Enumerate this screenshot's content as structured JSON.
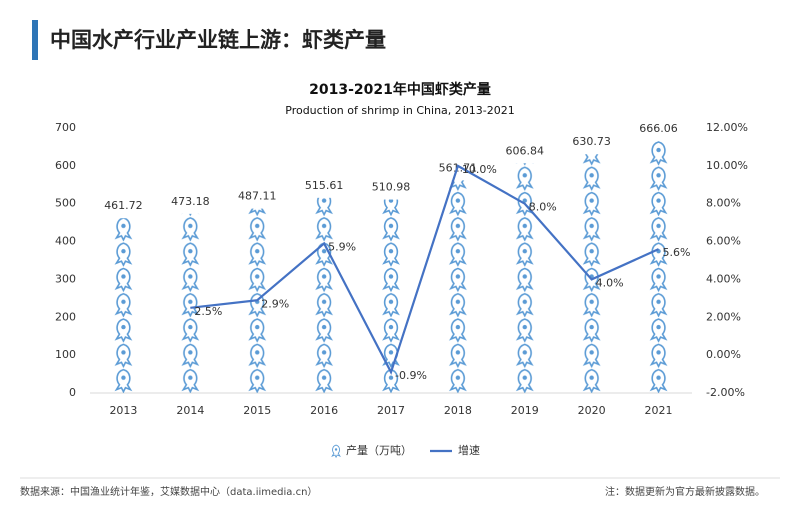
{
  "header": {
    "title": "中国水产行业产业链上游：虾类产量"
  },
  "chart_data": {
    "type": "bar",
    "title": "2013-2021年中国虾类产量",
    "subtitle": "Production of shrimp in China, 2013-2021",
    "categories": [
      "2013",
      "2014",
      "2015",
      "2016",
      "2017",
      "2018",
      "2019",
      "2020",
      "2021"
    ],
    "series": [
      {
        "name": "产量（万吨）",
        "type": "bar",
        "color": "#5b9bd5",
        "values": [
          461.72,
          473.18,
          487.11,
          515.61,
          510.98,
          561.71,
          606.84,
          630.73,
          666.06
        ]
      },
      {
        "name": "增速",
        "type": "line",
        "axis": "y2",
        "color": "#4472c4",
        "values": [
          null,
          2.5,
          2.9,
          5.9,
          -0.9,
          10.0,
          8.0,
          4.0,
          5.6
        ],
        "value_labels": [
          null,
          "2.5%",
          "2.9%",
          "5.9%",
          "-0.9%",
          "10.0%",
          "8.0%",
          "4.0%",
          "5.6%"
        ]
      }
    ],
    "ylim": [
      0,
      700
    ],
    "yticks": [
      0,
      100,
      200,
      300,
      400,
      500,
      600,
      700
    ],
    "y2lim": [
      -2,
      12
    ],
    "y2ticks": [
      {
        "value": -2,
        "label": "-2.00%"
      },
      {
        "value": 0,
        "label": "0.00%"
      },
      {
        "value": 2,
        "label": "2.00%"
      },
      {
        "value": 4,
        "label": "4.00%"
      },
      {
        "value": 6,
        "label": "6.00%"
      },
      {
        "value": 8,
        "label": "8.00%"
      },
      {
        "value": 10,
        "label": "10.00%"
      },
      {
        "value": 12,
        "label": "12.00%"
      }
    ],
    "grid": false,
    "legend": "bottom"
  },
  "footer": {
    "source": "数据来源：中国渔业统计年鉴，艾媒数据中心（data.iimedia.cn）",
    "note": "注：数据更新为官方最新披露数据。"
  }
}
